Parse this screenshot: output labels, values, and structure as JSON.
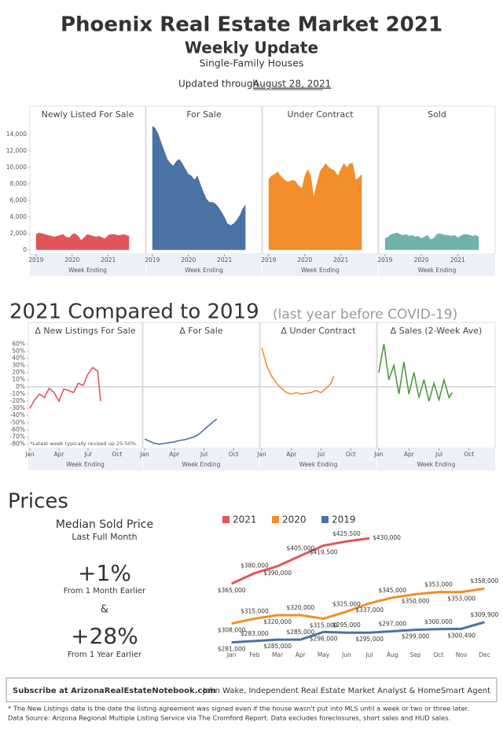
{
  "header": {
    "title": "Phoenix Real Estate Market 2021",
    "subtitle": "Weekly Update",
    "segment": "Single-Family Houses",
    "updated_prefix": "Updated through",
    "updated_date": "August 28, 2021"
  },
  "sections": {
    "compare_title": "2021 Compared to 2019",
    "compare_note": "(last year before COVID-19)",
    "prices_title": "Prices"
  },
  "price_summary": {
    "title": "Median Sold Price",
    "period": "Last Full Month",
    "month_change": "+1%",
    "month_label": "From 1 Month Earlier",
    "joiner": "&",
    "year_change": "+28%",
    "year_label": "From 1 Year Earlier"
  },
  "footer": {
    "subscribe": "Subscribe at ArizonaRealEstateNotebook.com",
    "author": "John Wake, Independent Real Estate Market Analyst & HomeSmart Agent",
    "note1": "* The New Listings date is the date the listing agreement was signed even if the house wasn't put into MLS until a week or two or three later.",
    "note2": "Data Source: Arizona Regional Multiple Listing Service via The Cromford Report. Data excludes foreclosures, short sales and HUD sales."
  },
  "chart_data": [
    {
      "type": "area",
      "title": "Newly Listed For Sale",
      "x_label": "Week Ending",
      "color": "#e05559",
      "x": [
        2019,
        2019.08,
        2019.17,
        2019.25,
        2019.33,
        2019.42,
        2019.5,
        2019.58,
        2019.67,
        2019.75,
        2019.83,
        2019.92,
        2020,
        2020.08,
        2020.17,
        2020.25,
        2020.33,
        2020.42,
        2020.5,
        2020.58,
        2020.67,
        2020.75,
        2020.83,
        2020.92,
        2021,
        2021.08,
        2021.17,
        2021.25,
        2021.33,
        2021.42,
        2021.5,
        2021.58
      ],
      "values": [
        1900,
        2100,
        2000,
        1900,
        1800,
        1700,
        1600,
        1700,
        1800,
        1900,
        1600,
        1500,
        1900,
        2000,
        1700,
        1200,
        1500,
        1900,
        1800,
        1700,
        1600,
        1700,
        1500,
        1400,
        1800,
        1900,
        1900,
        1800,
        1800,
        1900,
        1800,
        1700
      ],
      "xlim": [
        2018.83,
        2022.03
      ],
      "xticks": [
        2019,
        2020,
        2021
      ],
      "ylim": [
        -500,
        15500
      ],
      "yticks": [
        0,
        {
          "value": 2000,
          "label": "2,000"
        },
        {
          "value": 4000,
          "label": "4,000"
        },
        {
          "value": 6000,
          "label": "6,000"
        },
        {
          "value": 8000,
          "label": "8,000"
        },
        {
          "value": 10000,
          "label": "10,000"
        },
        {
          "value": 12000,
          "label": "12,000"
        },
        {
          "value": 14000,
          "label": "14,000"
        }
      ]
    },
    {
      "type": "area",
      "title": "For Sale",
      "x_label": "Week Ending",
      "color": "#4a72a4",
      "x": [
        2019,
        2019.08,
        2019.17,
        2019.25,
        2019.33,
        2019.42,
        2019.5,
        2019.58,
        2019.67,
        2019.75,
        2019.83,
        2019.92,
        2020,
        2020.08,
        2020.17,
        2020.25,
        2020.33,
        2020.42,
        2020.5,
        2020.58,
        2020.67,
        2020.75,
        2020.83,
        2020.92,
        2021,
        2021.08,
        2021.17,
        2021.25,
        2021.33,
        2021.42,
        2021.5,
        2021.58
      ],
      "values": [
        15000,
        14800,
        14000,
        13000,
        12000,
        11000,
        10500,
        10200,
        10800,
        11000,
        10500,
        9800,
        9200,
        9000,
        8500,
        9000,
        8000,
        7000,
        6200,
        5800,
        5800,
        5600,
        5200,
        4600,
        4000,
        3200,
        3000,
        3200,
        3600,
        4200,
        5000,
        5500
      ],
      "xlim": [
        2018.83,
        2022.03
      ],
      "xticks": [
        2019,
        2020,
        2021
      ],
      "ylim": [
        -500,
        15500
      ]
    },
    {
      "type": "area",
      "title": "Under Contract",
      "x_label": "Week Ending",
      "color": "#f28e2b",
      "x": [
        2019,
        2019.08,
        2019.17,
        2019.25,
        2019.33,
        2019.42,
        2019.5,
        2019.58,
        2019.67,
        2019.75,
        2019.83,
        2019.92,
        2020,
        2020.08,
        2020.17,
        2020.25,
        2020.33,
        2020.42,
        2020.5,
        2020.58,
        2020.67,
        2020.75,
        2020.83,
        2020.92,
        2021,
        2021.08,
        2021.17,
        2021.25,
        2021.33,
        2021.42,
        2021.5,
        2021.58
      ],
      "values": [
        8600,
        9000,
        9200,
        9500,
        9000,
        8600,
        8300,
        8300,
        8500,
        8300,
        7800,
        7500,
        9000,
        9800,
        9000,
        6500,
        8000,
        9500,
        10000,
        10500,
        10000,
        9800,
        9600,
        9000,
        9800,
        10500,
        10000,
        10500,
        10500,
        8500,
        8800,
        9200
      ],
      "xlim": [
        2018.83,
        2022.03
      ],
      "xticks": [
        2019,
        2020,
        2021
      ],
      "ylim": [
        -500,
        15500
      ]
    },
    {
      "type": "area",
      "title": "Sold",
      "x_label": "Week Ending",
      "color": "#6fb3aa",
      "x": [
        2019,
        2019.08,
        2019.17,
        2019.25,
        2019.33,
        2019.42,
        2019.5,
        2019.58,
        2019.67,
        2019.75,
        2019.83,
        2019.92,
        2020,
        2020.08,
        2020.17,
        2020.25,
        2020.33,
        2020.42,
        2020.5,
        2020.58,
        2020.67,
        2020.75,
        2020.83,
        2020.92,
        2021,
        2021.08,
        2021.17,
        2021.25,
        2021.33,
        2021.42,
        2021.5,
        2021.58
      ],
      "values": [
        1400,
        1600,
        1900,
        2000,
        2100,
        1900,
        1800,
        1900,
        1700,
        1800,
        1600,
        1700,
        1400,
        1600,
        1800,
        1300,
        1400,
        1900,
        2000,
        1900,
        1800,
        1800,
        1700,
        1800,
        1500,
        1700,
        1900,
        1900,
        1800,
        1700,
        1800,
        1600
      ],
      "xlim": [
        2018.83,
        2022.03
      ],
      "xticks": [
        2019,
        2020,
        2021
      ],
      "ylim": [
        -500,
        15500
      ]
    },
    {
      "type": "line",
      "title": "Δ New Listings For Sale",
      "x_label": "Week Ending",
      "color": "#e05559",
      "note": "*Latest week typically revised up 25-50%.",
      "x": [
        1,
        1.5,
        2,
        2.5,
        3,
        3.5,
        4,
        4.5,
        5,
        5.5,
        6,
        6.5,
        7,
        7.5,
        8,
        8.3
      ],
      "values": [
        -30,
        -18,
        -10,
        -15,
        -2,
        -8,
        -20,
        -3,
        -5,
        -8,
        5,
        2,
        18,
        27,
        22,
        -20
      ],
      "xlim": [
        0.84,
        12.6
      ],
      "xticks": [
        {
          "value": 1,
          "label": "Jan"
        },
        {
          "value": 4,
          "label": "Apr"
        },
        {
          "value": 7,
          "label": "Jul"
        },
        {
          "value": 10,
          "label": "Oct"
        }
      ],
      "ylim": [
        -86,
        68
      ],
      "yticks": [
        {
          "value": 60,
          "label": "60%"
        },
        {
          "value": 50,
          "label": "50%"
        },
        {
          "value": 40,
          "label": "40%"
        },
        {
          "value": 30,
          "label": "30%"
        },
        {
          "value": 20,
          "label": "20%"
        },
        {
          "value": 10,
          "label": "10%"
        },
        {
          "value": 0,
          "label": "0%"
        },
        {
          "value": -10,
          "label": "-10%"
        },
        {
          "value": -20,
          "label": "-20%"
        },
        {
          "value": -30,
          "label": "-30%"
        },
        {
          "value": -40,
          "label": "-40%"
        },
        {
          "value": -50,
          "label": "-50%"
        },
        {
          "value": -60,
          "label": "-60%"
        },
        {
          "value": -70,
          "label": "-70%"
        },
        {
          "value": -80,
          "label": "-80%"
        }
      ]
    },
    {
      "type": "line",
      "title": "Δ For Sale",
      "x_label": "Week Ending",
      "color": "#4a72a4",
      "x": [
        1,
        1.5,
        2,
        2.5,
        3,
        3.5,
        4,
        4.5,
        5,
        5.5,
        6,
        6.5,
        7,
        7.5,
        8,
        8.3
      ],
      "values": [
        -73,
        -76,
        -79,
        -80,
        -79,
        -78,
        -77,
        -75,
        -74,
        -72,
        -70,
        -66,
        -60,
        -54,
        -48,
        -45
      ],
      "xlim": [
        0.84,
        12.6
      ],
      "xticks": [
        {
          "value": 1,
          "label": "Jan"
        },
        {
          "value": 4,
          "label": "Apr"
        },
        {
          "value": 7,
          "label": "Jul"
        },
        {
          "value": 10,
          "label": "Oct"
        }
      ],
      "ylim": [
        -86,
        68
      ]
    },
    {
      "type": "line",
      "title": "Δ Under Contract",
      "x_label": "Week Ending",
      "color": "#f28e2b",
      "x": [
        1,
        1.5,
        2,
        2.5,
        3,
        3.5,
        4,
        4.5,
        5,
        5.5,
        6,
        6.5,
        7,
        7.5,
        8,
        8.3
      ],
      "values": [
        55,
        30,
        15,
        5,
        -2,
        -8,
        -10,
        -8,
        -10,
        -9,
        -8,
        -5,
        -8,
        -2,
        5,
        15
      ],
      "xlim": [
        0.84,
        12.6
      ],
      "xticks": [
        {
          "value": 1,
          "label": "Jan"
        },
        {
          "value": 4,
          "label": "Apr"
        },
        {
          "value": 7,
          "label": "Jul"
        },
        {
          "value": 10,
          "label": "Oct"
        }
      ],
      "ylim": [
        -86,
        68
      ]
    },
    {
      "type": "line",
      "title": "Δ Sales (2-Week Ave)",
      "x_label": "Week Ending",
      "color": "#4e9a3e",
      "x": [
        1,
        1.5,
        2,
        2.5,
        3,
        3.5,
        4,
        4.5,
        5,
        5.5,
        6,
        6.5,
        7,
        7.5,
        8,
        8.3
      ],
      "values": [
        20,
        60,
        10,
        30,
        -10,
        35,
        -10,
        20,
        -15,
        10,
        -20,
        5,
        -18,
        10,
        -15,
        -8
      ],
      "xlim": [
        0.84,
        12.6
      ],
      "xticks": [
        {
          "value": 1,
          "label": "Jan"
        },
        {
          "value": 4,
          "label": "Apr"
        },
        {
          "value": 7,
          "label": "Jul"
        },
        {
          "value": 10,
          "label": "Oct"
        }
      ],
      "ylim": [
        -86,
        68
      ]
    },
    {
      "type": "line",
      "categories": [
        "Jan",
        "Feb",
        "Mar",
        "Apr",
        "May",
        "Jun",
        "Jul",
        "Aug",
        "Sep",
        "Oct",
        "Nov",
        "Dec"
      ],
      "ylim": [
        266000,
        446000
      ],
      "series": [
        {
          "name": "2021",
          "color": "#e05559",
          "values": [
            365000,
            380000,
            390000,
            405000,
            419500,
            425500,
            430000,
            null,
            null,
            null,
            null,
            null
          ],
          "value_labels": [
            "$365,000",
            "$380,000",
            "$390,000",
            "$405,000",
            "$419,500",
            "$425,500",
            "$430,000",
            null,
            null,
            null,
            null,
            null
          ]
        },
        {
          "name": "2020",
          "color": "#f28e2b",
          "values": [
            308000,
            315000,
            320000,
            320000,
            315000,
            325000,
            337000,
            345000,
            350000,
            353000,
            353000,
            358000
          ],
          "value_labels": [
            "$308,000",
            "$315,000",
            "$320,000",
            "$320,000",
            "$315,000",
            "$325,000",
            "$337,000",
            "$345,000",
            "$350,000",
            "$353,000",
            "$353,000",
            "$358,000"
          ]
        },
        {
          "name": "2019",
          "color": "#4a72a4",
          "values": [
            281000,
            283000,
            285000,
            285000,
            296000,
            295000,
            295000,
            297000,
            299000,
            300000,
            300490,
            309900
          ],
          "value_labels": [
            "$281,000",
            "$283,000",
            "$285,000",
            "$285,000",
            "$296,000",
            "$295,000",
            "$295,000",
            "$297,000",
            "$299,000",
            "$300,000",
            "$300,490",
            "$309,900"
          ]
        }
      ]
    }
  ]
}
